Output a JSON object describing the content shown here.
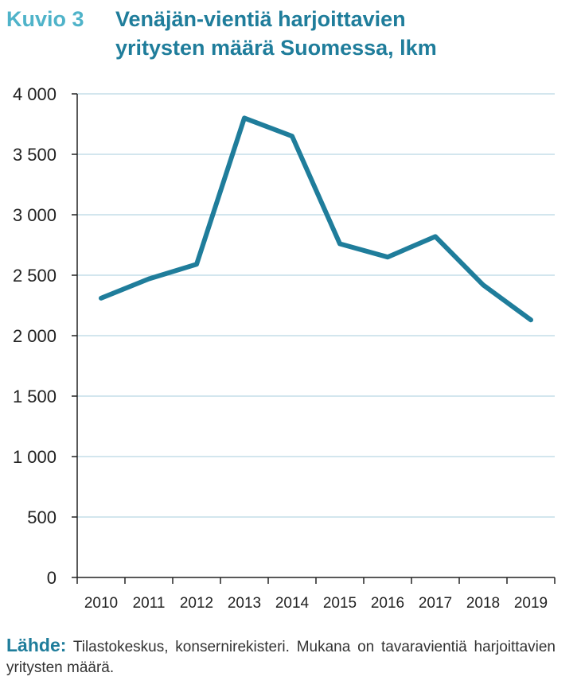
{
  "figure": {
    "label": "Kuvio 3",
    "title_line1": "Venäjän-vientiä harjoittavien",
    "title_line2": "yritysten määrä Suomessa, lkm"
  },
  "source": {
    "label": "Lähde:",
    "text": "Tilastokeskus, konsernirekisteri. Mukana on tavaravientiä harjoittavien yritysten määrä."
  },
  "colors": {
    "line": "#1f7d9b",
    "grid": "#b9d8e4",
    "axis": "#222222"
  },
  "chart_data": {
    "type": "line",
    "title": "Venäjän-vientiä harjoittavien yritysten määrä Suomessa, lkm",
    "xlabel": "",
    "ylabel": "",
    "categories": [
      "2010",
      "2011",
      "2012",
      "2013",
      "2014",
      "2015",
      "2016",
      "2017",
      "2018",
      "2019"
    ],
    "series": [
      {
        "values": [
          2310,
          2470,
          2590,
          3800,
          3650,
          2760,
          2650,
          2820,
          2420,
          2130
        ]
      }
    ],
    "ylim": [
      0,
      4000
    ],
    "yticks": [
      0,
      500,
      1000,
      1500,
      2000,
      2500,
      3000,
      3500,
      4000
    ],
    "ytick_labels": [
      "0",
      "500",
      "1 000",
      "1 500",
      "2 000",
      "2 500",
      "3 000",
      "3 500",
      "4 000"
    ],
    "grid": true,
    "legend": "none"
  }
}
